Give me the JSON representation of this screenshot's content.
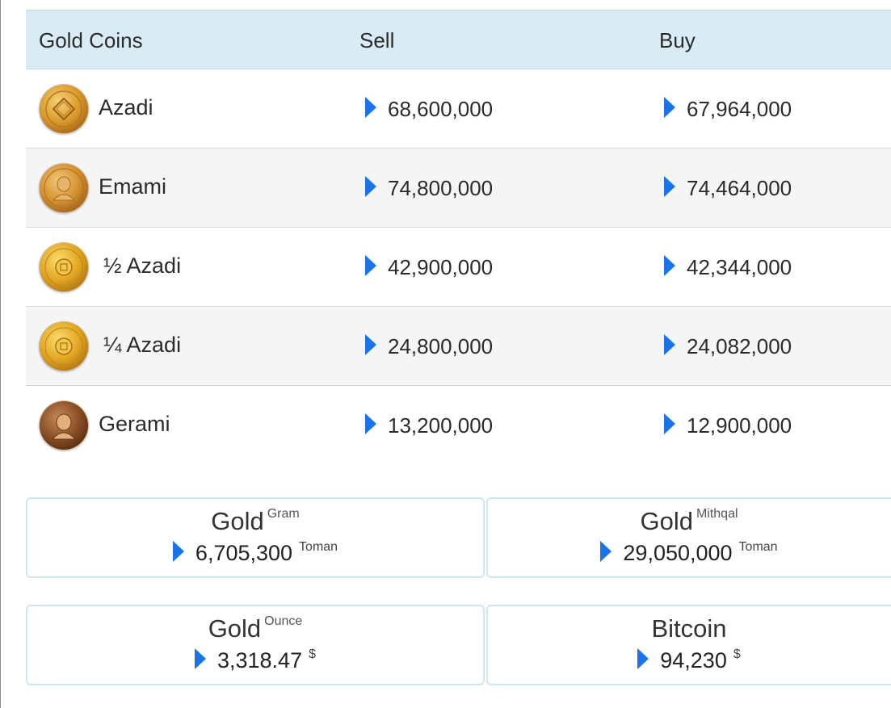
{
  "table": {
    "headers": {
      "name": "Gold Coins",
      "sell": "Sell",
      "buy": "Buy"
    },
    "rows": [
      {
        "name": "Azadi",
        "sell": "68,600,000",
        "buy": "67,964,000",
        "icon": "azadi-coin-icon"
      },
      {
        "name": "Emami",
        "sell": "74,800,000",
        "buy": "74,464,000",
        "icon": "emami-coin-icon"
      },
      {
        "name": "½ Azadi",
        "sell": "42,900,000",
        "buy": "42,344,000",
        "icon": "half-azadi-coin-icon"
      },
      {
        "name": "¼ Azadi",
        "sell": "24,800,000",
        "buy": "24,082,000",
        "icon": "quarter-azadi-coin-icon"
      },
      {
        "name": "Gerami",
        "sell": "13,200,000",
        "buy": "12,900,000",
        "icon": "gerami-coin-icon"
      }
    ]
  },
  "cards": {
    "gram": {
      "title": "Gold",
      "sub": "Gram",
      "value": "6,705,300",
      "unit": "Toman"
    },
    "mithqal": {
      "title": "Gold",
      "sub": "Mithqal",
      "value": "29,050,000",
      "unit": "Toman"
    },
    "ounce": {
      "title": "Gold",
      "sub": "Ounce",
      "value": "3,318.47",
      "unit": "$"
    },
    "bitcoin": {
      "title": "Bitcoin",
      "value": "94,230",
      "unit": "$"
    }
  },
  "colors": {
    "header_bg": "#d9ecf5",
    "arrow": "#1a73e8",
    "card_border": "#cfe6ee",
    "row_alt": "#f5f5f5"
  },
  "icons": {
    "price_arrow": "caret-right-icon"
  }
}
